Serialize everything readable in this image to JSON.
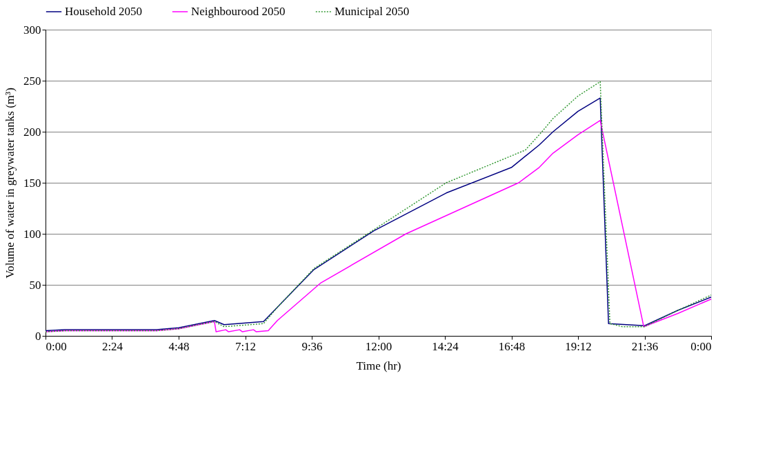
{
  "chart_data": {
    "type": "line",
    "xlabel": "Time (hr)",
    "ylabel": "Volume of water in greywater tanks (m³)",
    "xlim": [
      0,
      24
    ],
    "ylim": [
      0,
      300
    ],
    "xticks": [
      {
        "value": 0,
        "label": "0:00"
      },
      {
        "value": 2.4,
        "label": "2:24"
      },
      {
        "value": 4.8,
        "label": "4:48"
      },
      {
        "value": 7.2,
        "label": "7:12"
      },
      {
        "value": 9.6,
        "label": "9:36"
      },
      {
        "value": 12,
        "label": "12:00"
      },
      {
        "value": 14.4,
        "label": "14:24"
      },
      {
        "value": 16.8,
        "label": "16:48"
      },
      {
        "value": 19.2,
        "label": "19:12"
      },
      {
        "value": 21.6,
        "label": "21:36"
      },
      {
        "value": 24,
        "label": "0:00"
      }
    ],
    "yticks": [
      0,
      50,
      100,
      150,
      200,
      250,
      300
    ],
    "grid": "y",
    "legend": "top",
    "marker": "none",
    "series": [
      {
        "name": "Household 2050",
        "color": "#000080",
        "line_style": "solid",
        "x": [
          0,
          0.7,
          4,
          4.8,
          6.09,
          6.44,
          7.86,
          8.36,
          9.68,
          11.84,
          14.45,
          16.8,
          17.8,
          18.3,
          19.2,
          20.0,
          20.3,
          21.6,
          22.8,
          24
        ],
        "values": [
          5,
          6,
          6,
          8,
          15,
          11,
          14,
          28,
          65,
          103,
          140,
          165,
          187,
          200,
          220,
          233,
          12,
          10,
          25,
          38
        ]
      },
      {
        "name": "Neighbourood 2050",
        "color": "#ff00ff",
        "line_style": "solid",
        "x": [
          0,
          0.7,
          4,
          4.8,
          6.09,
          6.15,
          6.5,
          6.6,
          7.0,
          7.1,
          7.5,
          7.6,
          8.03,
          8.36,
          9.93,
          13.0,
          17.06,
          17.8,
          18.3,
          19.2,
          20.0,
          21.57,
          22.8,
          24
        ],
        "values": [
          4,
          5,
          5,
          7,
          14,
          4,
          6,
          4,
          6,
          4,
          6,
          4,
          5,
          15,
          52,
          100,
          150,
          165,
          179,
          197,
          211,
          9,
          22,
          36
        ]
      },
      {
        "name": "Municipal 2050",
        "color": "#339933",
        "line_style": "dotted",
        "x": [
          0,
          0.7,
          4,
          4.8,
          6.09,
          6.44,
          7.86,
          8.36,
          9.68,
          11.67,
          14.45,
          17.3,
          17.9,
          18.3,
          19.2,
          20.0,
          20.35,
          20.8,
          21.6,
          22.8,
          24
        ],
        "values": [
          4,
          5,
          5,
          7,
          14,
          9,
          12,
          28,
          66,
          101,
          150,
          182,
          200,
          213,
          235,
          249,
          12,
          9,
          9,
          25,
          40
        ]
      }
    ]
  }
}
